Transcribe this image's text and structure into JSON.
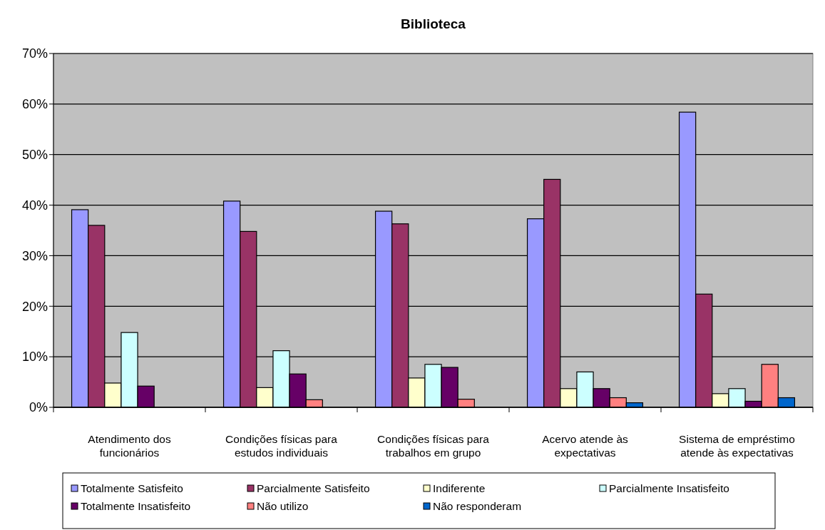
{
  "chart_data": {
    "type": "bar",
    "title": "Biblioteca",
    "categories": [
      "Atendimento dos funcionários",
      "Condições físicas para estudos individuais",
      "Condições físicas para trabalhos em grupo",
      "Acervo atende às expectativas",
      "Sistema de empréstimo atende às expectativas"
    ],
    "series": [
      {
        "name": "Totalmente Satisfeito",
        "color": "#9999ff",
        "values": [
          39.1,
          40.8,
          38.8,
          37.3,
          58.4
        ]
      },
      {
        "name": "Parcialmente Satisfeito",
        "color": "#993366",
        "values": [
          36.0,
          34.8,
          36.3,
          45.1,
          22.4
        ]
      },
      {
        "name": "Indiferente",
        "color": "#ffffcc",
        "values": [
          4.8,
          3.9,
          5.8,
          3.7,
          2.7
        ]
      },
      {
        "name": "Parcialmente Insatisfeito",
        "color": "#ccffff",
        "values": [
          14.8,
          11.2,
          8.5,
          7.0,
          3.7
        ]
      },
      {
        "name": "Totalmente Insatisfeito",
        "color": "#660066",
        "values": [
          4.2,
          6.6,
          7.9,
          3.7,
          1.2
        ]
      },
      {
        "name": "Não utilizo",
        "color": "#ff8080",
        "values": [
          0,
          1.5,
          1.6,
          1.9,
          8.5
        ]
      },
      {
        "name": "Não responderam",
        "color": "#0066cc",
        "values": [
          0,
          0,
          0,
          0.9,
          1.9
        ]
      }
    ],
    "ylim": [
      0,
      70
    ],
    "yticks": [
      {
        "value": 0,
        "label": "0%"
      },
      {
        "value": 10,
        "label": "10%"
      },
      {
        "value": 20,
        "label": "20%"
      },
      {
        "value": 30,
        "label": "30%"
      },
      {
        "value": 40,
        "label": "40%"
      },
      {
        "value": 50,
        "label": "50%"
      },
      {
        "value": 60,
        "label": "60%"
      },
      {
        "value": 70,
        "label": "70%"
      }
    ],
    "grid": "y",
    "legend": "bottom"
  }
}
